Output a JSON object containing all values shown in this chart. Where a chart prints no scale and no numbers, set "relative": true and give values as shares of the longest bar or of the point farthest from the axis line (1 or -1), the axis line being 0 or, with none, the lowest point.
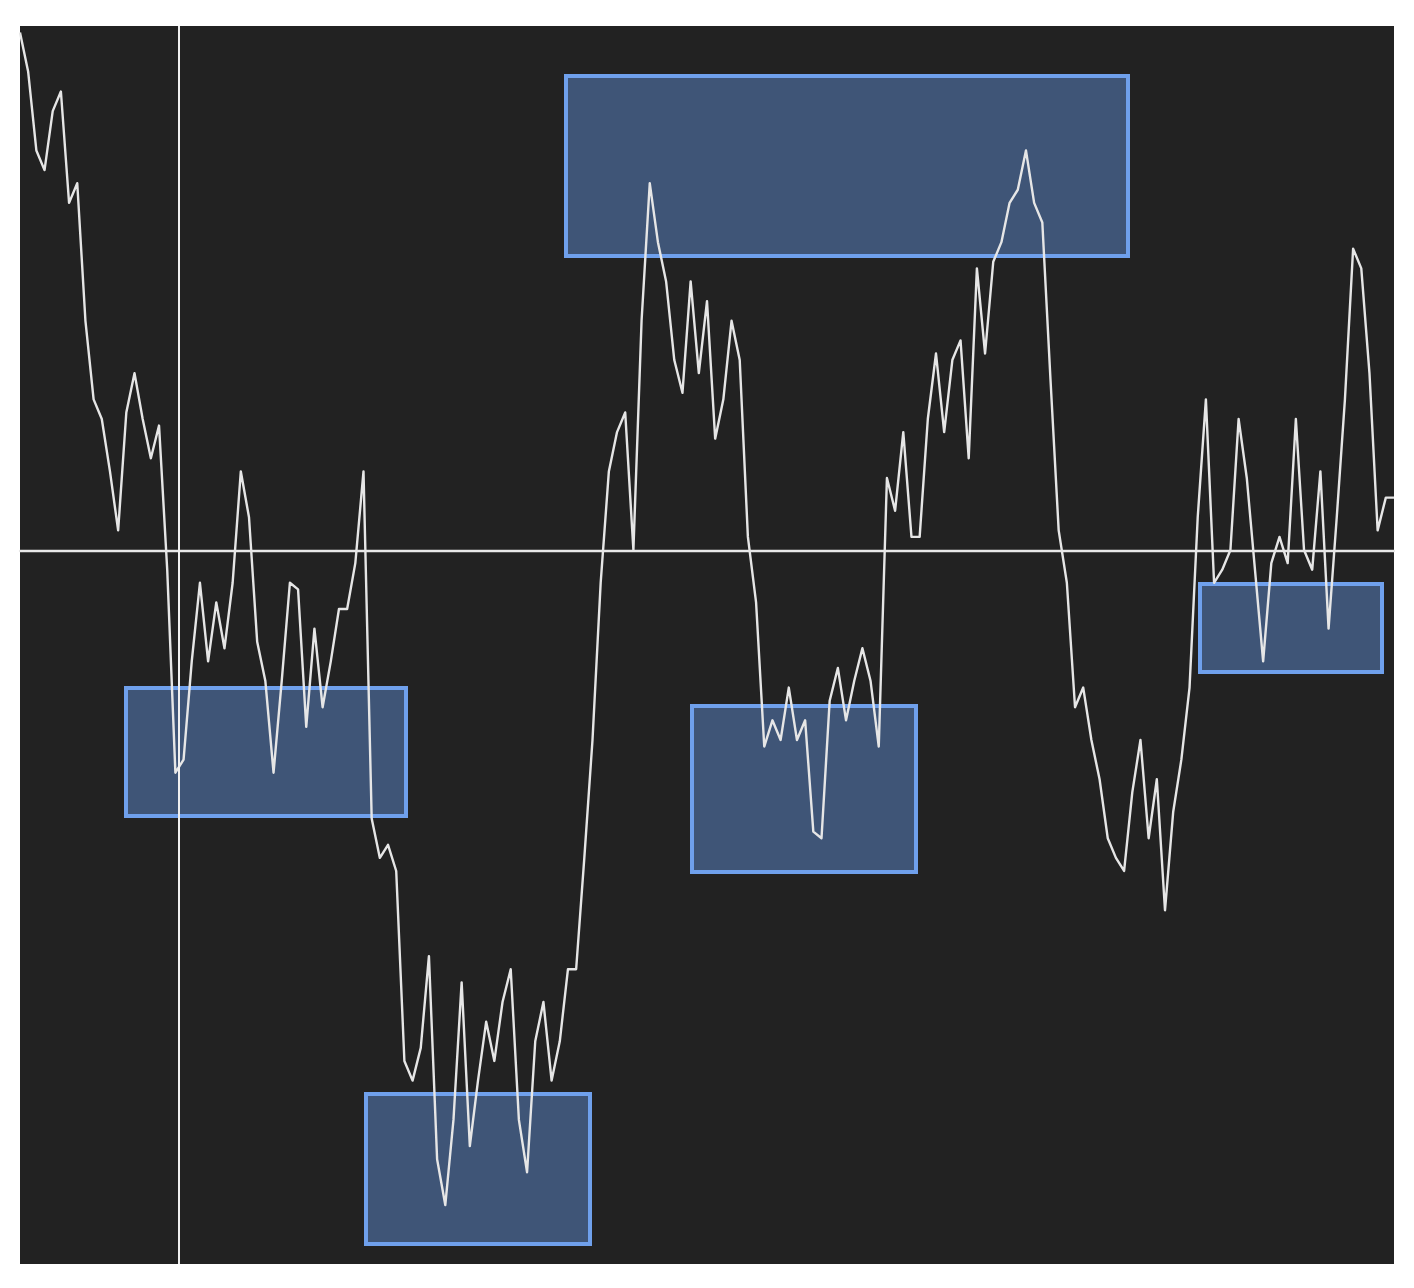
{
  "chart_data": {
    "type": "line",
    "relative": true,
    "color": "#e6e6e6",
    "categories": [
      null,
      null,
      null,
      null,
      null,
      null,
      null,
      null,
      null,
      null,
      null,
      null,
      null,
      null,
      null,
      null,
      null,
      null,
      null,
      null,
      null,
      null,
      null,
      null,
      null,
      null,
      null,
      null,
      null,
      null,
      null,
      null,
      null,
      null,
      null,
      null,
      null,
      null,
      null,
      null,
      null,
      null,
      null,
      null,
      null,
      null,
      null,
      null,
      null,
      null,
      null,
      null,
      null,
      null,
      null,
      null,
      null,
      null,
      null,
      null,
      null,
      null,
      null,
      null,
      null,
      null,
      null,
      null,
      null,
      null,
      null,
      null,
      null,
      null,
      null,
      null,
      null,
      null,
      null,
      null,
      null,
      null,
      null,
      null,
      null,
      null,
      null,
      null,
      null,
      null,
      null,
      null,
      null,
      null,
      null,
      null,
      null,
      null,
      null,
      null,
      null,
      null,
      null,
      null,
      null,
      null,
      null,
      null,
      null,
      null,
      null,
      null,
      null,
      null,
      null,
      null,
      null,
      null,
      null,
      null,
      null,
      null,
      null,
      null,
      null,
      null,
      null,
      null,
      null,
      null,
      null,
      null,
      null,
      null,
      null,
      null,
      null,
      null,
      null,
      null,
      null,
      null,
      null,
      null,
      null,
      null,
      null,
      null,
      null,
      null,
      null,
      null,
      null,
      null,
      null,
      null,
      null,
      null,
      null,
      null,
      null,
      null,
      null,
      null,
      null,
      null,
      null,
      null,
      null
    ],
    "values": [
      0.79,
      0.73,
      0.61,
      0.58,
      0.67,
      0.7,
      0.53,
      0.56,
      0.35,
      0.23,
      0.2,
      0.12,
      0.03,
      0.21,
      0.27,
      0.2,
      0.14,
      0.19,
      -0.03,
      -0.34,
      -0.32,
      -0.17,
      -0.05,
      -0.17,
      -0.08,
      -0.15,
      -0.05,
      0.12,
      0.05,
      -0.14,
      -0.2,
      -0.34,
      -0.2,
      -0.05,
      -0.06,
      -0.27,
      -0.12,
      -0.24,
      -0.17,
      -0.09,
      -0.09,
      -0.02,
      0.12,
      -0.41,
      -0.47,
      -0.45,
      -0.49,
      -0.78,
      -0.81,
      -0.76,
      -0.62,
      -0.93,
      -1,
      -0.87,
      -0.66,
      -0.91,
      -0.81,
      -0.72,
      -0.78,
      -0.69,
      -0.64,
      -0.87,
      -0.95,
      -0.75,
      -0.69,
      -0.81,
      -0.75,
      -0.64,
      -0.64,
      -0.47,
      -0.29,
      -0.05,
      0.12,
      0.18,
      0.21,
      0,
      0.35,
      0.56,
      0.47,
      0.41,
      0.29,
      0.24,
      0.41,
      0.27,
      0.38,
      0.17,
      0.23,
      0.35,
      0.29,
      0.02,
      -0.08,
      -0.3,
      -0.26,
      -0.29,
      -0.21,
      -0.29,
      -0.26,
      -0.43,
      -0.44,
      -0.23,
      -0.18,
      -0.26,
      -0.2,
      -0.15,
      -0.2,
      -0.3,
      0.11,
      0.06,
      0.18,
      0.02,
      0.02,
      0.2,
      0.3,
      0.18,
      0.29,
      0.32,
      0.14,
      0.43,
      0.3,
      0.44,
      0.47,
      0.53,
      0.55,
      0.61,
      0.53,
      0.5,
      0.26,
      0.03,
      -0.05,
      -0.24,
      -0.21,
      -0.29,
      -0.35,
      -0.44,
      -0.47,
      -0.49,
      -0.37,
      -0.29,
      -0.44,
      -0.35,
      -0.55,
      -0.4,
      -0.32,
      -0.21,
      0.05,
      0.23,
      -0.05,
      -0.03,
      0,
      0.2,
      0.11,
      -0.03,
      -0.17,
      -0.02,
      0.02,
      -0.02,
      0.2,
      0,
      -0.03,
      0.12,
      -0.12,
      0.05,
      0.23,
      0.46,
      0.43,
      0.27,
      0.03,
      0.08,
      0.08
    ]
  }
}
